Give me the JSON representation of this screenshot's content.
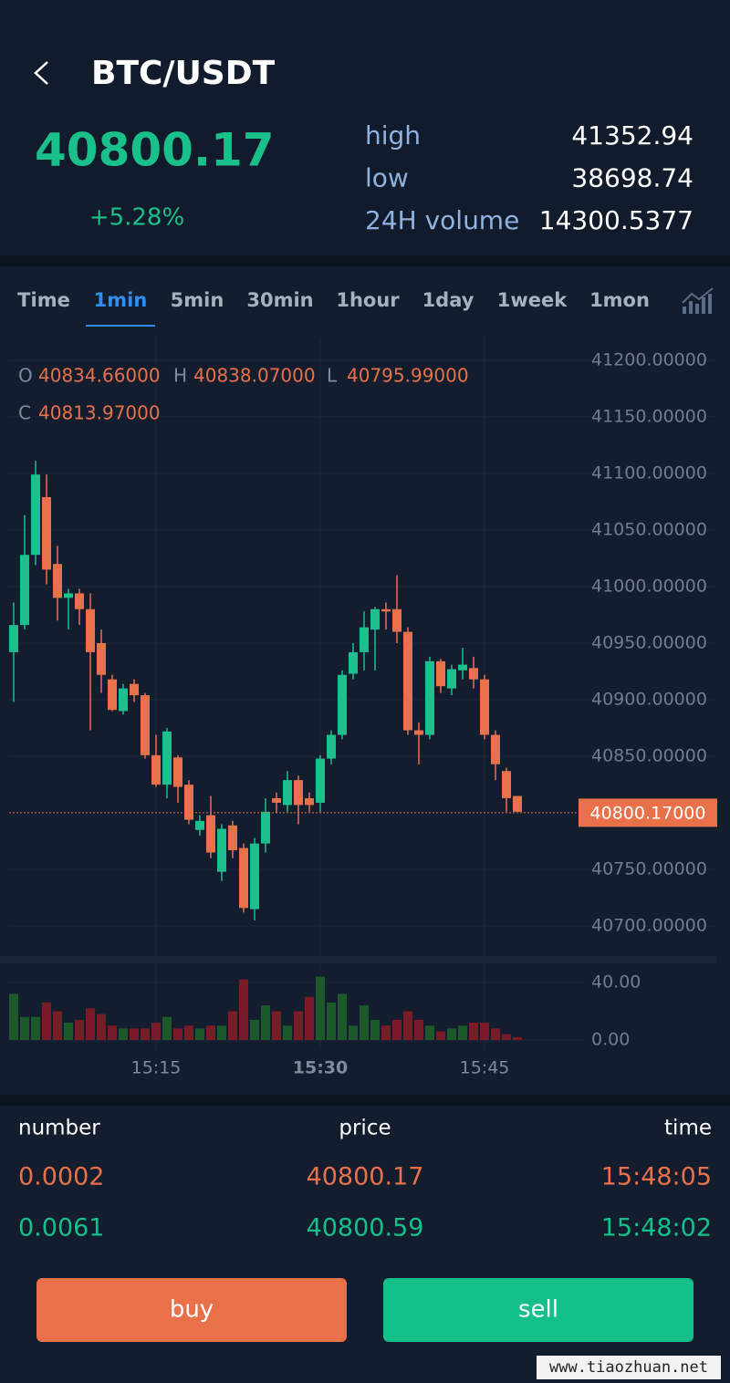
{
  "header": {
    "title": "BTC/USDT"
  },
  "ticker": {
    "price": "40800.17",
    "change": "+5.28%",
    "stats": [
      {
        "label": "high",
        "value": "41352.94"
      },
      {
        "label": "low",
        "value": "38698.74"
      },
      {
        "label": "24H volume",
        "value": "14300.5377"
      }
    ]
  },
  "tabs": [
    "Time",
    "1min",
    "5min",
    "30min",
    "1hour",
    "1day",
    "1week",
    "1mon"
  ],
  "active_tab": 1,
  "chart": {
    "type": "candlestick",
    "info": [
      {
        "key": "O",
        "value": "40834.66000"
      },
      {
        "key": "H",
        "value": "40838.07000"
      },
      {
        "key": "L",
        "value": "40795.99000"
      },
      {
        "key": "C",
        "value": "40813.97000"
      }
    ],
    "categories": [
      null,
      null,
      null,
      null,
      null,
      null,
      null,
      null,
      null,
      null,
      null,
      null,
      null,
      "15:15",
      null,
      null,
      null,
      null,
      null,
      null,
      null,
      null,
      null,
      null,
      null,
      null,
      null,
      null,
      "15:30",
      null,
      null,
      null,
      null,
      null,
      null,
      null,
      null,
      null,
      null,
      null,
      null,
      null,
      null,
      "15:45",
      null,
      null,
      null
    ],
    "open": [
      40942,
      40966,
      41028,
      41079,
      41020,
      40990,
      40994,
      40980,
      40950,
      40918,
      40890,
      40914,
      40904,
      40851,
      40825,
      40849,
      40825,
      40785,
      40798,
      40748,
      40789,
      40769,
      40715,
      40773,
      40813,
      40807,
      40829,
      40813,
      40809,
      40848,
      40869,
      40923,
      40942,
      40962,
      40980,
      40980,
      40960,
      40873,
      40869,
      40934,
      40910,
      40926,
      40928,
      40918,
      40869,
      40837,
      40815
    ],
    "high": [
      40986,
      41063,
      41111,
      41099,
      41036,
      40998,
      40998,
      40994,
      40962,
      40922,
      40914,
      40918,
      40906,
      40869,
      40875,
      40851,
      40829,
      40798,
      40815,
      40790,
      40793,
      40773,
      40778,
      40813,
      40818,
      40837,
      40833,
      40818,
      40851,
      40873,
      40926,
      40950,
      40978,
      40982,
      40986,
      41010,
      40964,
      40880,
      40938,
      40936,
      40931,
      40946,
      40938,
      40922,
      40873,
      40840,
      40815
    ],
    "low": [
      40898,
      40962,
      41019,
      41002,
      40970,
      40962,
      40966,
      40873,
      40906,
      40890,
      40887,
      40898,
      40848,
      40823,
      40813,
      40809,
      40790,
      40780,
      40760,
      40740,
      40760,
      40712,
      40705,
      40765,
      40800,
      40801,
      40790,
      40801,
      40801,
      40843,
      40865,
      40918,
      40926,
      40926,
      40962,
      40950,
      40869,
      40843,
      40865,
      40906,
      40904,
      40918,
      40910,
      40865,
      40829,
      40801,
      40801
    ],
    "close": [
      40966,
      41028,
      41099,
      41015,
      40990,
      40994,
      40980,
      40942,
      40922,
      40891,
      40910,
      40904,
      40851,
      40825,
      40872,
      40823,
      40794,
      40793,
      40765,
      40786,
      40767,
      40716,
      40773,
      40801,
      40809,
      40829,
      40807,
      40807,
      40848,
      40869,
      40922,
      40942,
      40964,
      40980,
      40978,
      40960,
      40873,
      40869,
      40934,
      40912,
      40927,
      40931,
      40918,
      40869,
      40843,
      40813,
      40801
    ],
    "volume": [
      32,
      16,
      16,
      26,
      20,
      12,
      14,
      22,
      18,
      10,
      8,
      8,
      8,
      12,
      16,
      8,
      10,
      8,
      10,
      10,
      20,
      42,
      14,
      24,
      20,
      10,
      20,
      30,
      44,
      26,
      32,
      10,
      24,
      14,
      10,
      14,
      20,
      14,
      10,
      6,
      8,
      10,
      12,
      12,
      8,
      4,
      2
    ],
    "up_color": "#1dbf8c",
    "down_color": "#e8714a",
    "volume_up_color": "#1c5a2c",
    "volume_down_color": "#7a1c26",
    "ylim": [
      40680,
      41220
    ],
    "yticks": [
      {
        "value": 41200,
        "label": "41200.00000"
      },
      {
        "value": 41150,
        "label": "41150.00000"
      },
      {
        "value": 41100,
        "label": "41100.00000"
      },
      {
        "value": 41050,
        "label": "41050.00000"
      },
      {
        "value": 41000,
        "label": "41000.00000"
      },
      {
        "value": 40950,
        "label": "40950.00000"
      },
      {
        "value": 40900,
        "label": "40900.00000"
      },
      {
        "value": 40850,
        "label": "40850.00000"
      },
      {
        "value": 40750,
        "label": "40750.00000"
      },
      {
        "value": 40700,
        "label": "40700.00000"
      }
    ],
    "vylim": [
      0,
      45
    ],
    "vyticks": [
      {
        "value": 40,
        "label": "40.00"
      },
      {
        "value": 0,
        "label": "0.00"
      }
    ],
    "last_price": {
      "value": 40800.17,
      "label": "40800.17000"
    },
    "grid": true
  },
  "trades": {
    "headers": [
      "number",
      "price",
      "time"
    ],
    "rows": [
      {
        "cells": [
          "0.0002",
          "40800.17",
          "15:48:05"
        ],
        "color": "#e8714a"
      },
      {
        "cells": [
          "0.0061",
          "40800.59",
          "15:48:02"
        ],
        "color": "#13c08a"
      }
    ]
  },
  "buttons": {
    "buy": "buy",
    "sell": "sell"
  },
  "watermark": "www.tiaozhuan.net"
}
